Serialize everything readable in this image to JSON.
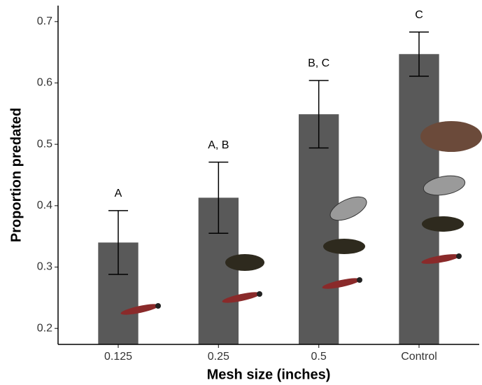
{
  "chart_data": {
    "type": "bar",
    "x_label": "Mesh size (inches)",
    "y_label": "Proportion predated",
    "categories": [
      "0.125",
      "0.25",
      "0.5",
      "Control"
    ],
    "values": [
      0.34,
      0.413,
      0.549,
      0.647
    ],
    "errors": [
      0.052,
      0.058,
      0.055,
      0.036
    ],
    "annotations": [
      "A",
      "A, B",
      "B, C",
      "C"
    ],
    "color": "#595959",
    "ylim": [
      0.174,
      0.726
    ],
    "yticks": [
      0.2,
      0.3,
      0.4,
      0.5,
      0.6,
      0.7
    ],
    "grid": false
  }
}
